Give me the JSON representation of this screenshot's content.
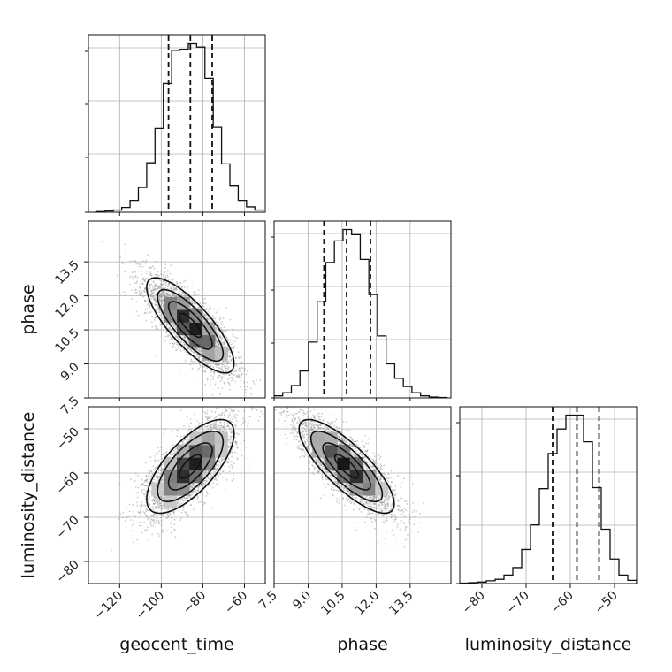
{
  "chart_data": {
    "type": "corner",
    "parameters": [
      {
        "name": "geocent_time",
        "label": "geocent_time",
        "range": [
          -135,
          -50
        ],
        "ticks": [
          -120,
          -100,
          -80,
          -60
        ],
        "tick_labels": [
          "−120",
          "−100",
          "−80",
          "−60"
        ],
        "quantiles": [
          -96.5,
          -86,
          -75.5
        ],
        "hist_bin_edges": [
          -131,
          -127,
          -123,
          -119,
          -115,
          -111,
          -107,
          -103,
          -99,
          -95,
          -91,
          -87,
          -83,
          -79,
          -75,
          -71,
          -67,
          -63,
          -59,
          -55,
          -51
        ],
        "hist_counts": [
          3,
          6,
          10,
          22,
          55,
          115,
          230,
          390,
          600,
          755,
          760,
          785,
          770,
          625,
          395,
          225,
          125,
          55,
          25,
          10
        ]
      },
      {
        "name": "phase",
        "label": "phase",
        "range": [
          7.5,
          15.3
        ],
        "ticks": [
          7.5,
          9.0,
          10.5,
          12.0,
          13.5
        ],
        "tick_labels": [
          "7.5",
          "9.0",
          "10.5",
          "12.0",
          "13.5"
        ],
        "quantiles": [
          9.7,
          10.7,
          11.75
        ],
        "hist_bin_edges": [
          7.5,
          7.88,
          8.26,
          8.64,
          9.02,
          9.4,
          9.78,
          10.16,
          10.54,
          10.92,
          11.3,
          11.68,
          12.06,
          12.44,
          12.82,
          13.2,
          13.58,
          13.96,
          14.34,
          14.72,
          15.1
        ],
        "hist_counts": [
          10,
          25,
          60,
          130,
          270,
          465,
          655,
          760,
          815,
          790,
          670,
          500,
          300,
          165,
          95,
          55,
          25,
          10,
          4,
          2
        ]
      },
      {
        "name": "luminosity_distance",
        "label": "luminosity_distance",
        "range": [
          -85,
          -45
        ],
        "ticks": [
          -80,
          -70,
          -60,
          -50
        ],
        "tick_labels": [
          "−80",
          "−70",
          "−60",
          "−50"
        ],
        "quantiles": [
          -64,
          -58.5,
          -53.5
        ],
        "hist_bin_edges": [
          -85,
          -83,
          -81,
          -79,
          -77,
          -75,
          -73,
          -71,
          -69,
          -67,
          -65,
          -63,
          -61,
          -59,
          -57,
          -55,
          -53,
          -51,
          -49,
          -47,
          -45
        ],
        "hist_counts": [
          2,
          4,
          7,
          13,
          20,
          40,
          75,
          160,
          275,
          445,
          610,
          725,
          790,
          790,
          665,
          450,
          255,
          115,
          40,
          15
        ]
      }
    ],
    "pairs": [
      {
        "x": "geocent_time",
        "y": "phase",
        "center": [
          -86,
          10.7
        ],
        "sd": [
          10.5,
          1.05
        ],
        "rho": -0.8
      },
      {
        "x": "geocent_time",
        "y": "luminosity_distance",
        "center": [
          -86,
          -58.5
        ],
        "sd": [
          10.5,
          5.3
        ],
        "rho": 0.7
      },
      {
        "x": "phase",
        "y": "luminosity_distance",
        "center": [
          10.7,
          -58.5
        ],
        "sd": [
          1.05,
          5.3
        ],
        "rho": -0.8
      }
    ],
    "grid": true,
    "legend": "none"
  }
}
